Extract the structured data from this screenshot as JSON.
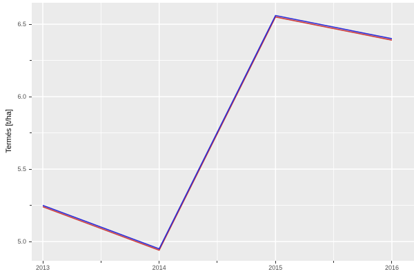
{
  "figure": {
    "background": "#FFFFFF",
    "panel_bg": "#EBEBEB",
    "grid_major_color": "#FFFFFF",
    "grid_minor_color": "#FFFFFF",
    "tick_color": "#333333",
    "tick_label_color": "#4D4D4D",
    "axis_title_color": "#000000"
  },
  "chart_data": {
    "type": "line",
    "title": "",
    "xlabel": "",
    "ylabel": "Termés [t/ha]",
    "x": [
      2013,
      2014,
      2015,
      2016
    ],
    "series": [
      {
        "name": "blue-line",
        "color": "#2B2BD5",
        "values": [
          5.25,
          4.95,
          6.56,
          6.4
        ]
      },
      {
        "name": "red-line",
        "color": "#CC3A3A",
        "values": [
          5.24,
          4.94,
          6.55,
          6.39
        ]
      }
    ],
    "x_major_ticks": [
      2013,
      2014,
      2015,
      2016
    ],
    "x_tick_labels": [
      "2013",
      "2014",
      "2015",
      "2016"
    ],
    "x_minor_ticks": [
      2013.5,
      2014.5,
      2015.5
    ],
    "y_major_ticks": [
      5.0,
      5.5,
      6.0,
      6.5
    ],
    "y_tick_labels": [
      "5.0",
      "5.5",
      "6.0",
      "6.5"
    ],
    "y_minor_ticks": [
      5.25,
      5.75,
      6.25
    ],
    "xlim": [
      2012.905,
      2016.19
    ],
    "ylim": [
      4.867,
      6.648
    ],
    "grid": "major+minor",
    "legend": "none",
    "line_width": 1.6
  }
}
